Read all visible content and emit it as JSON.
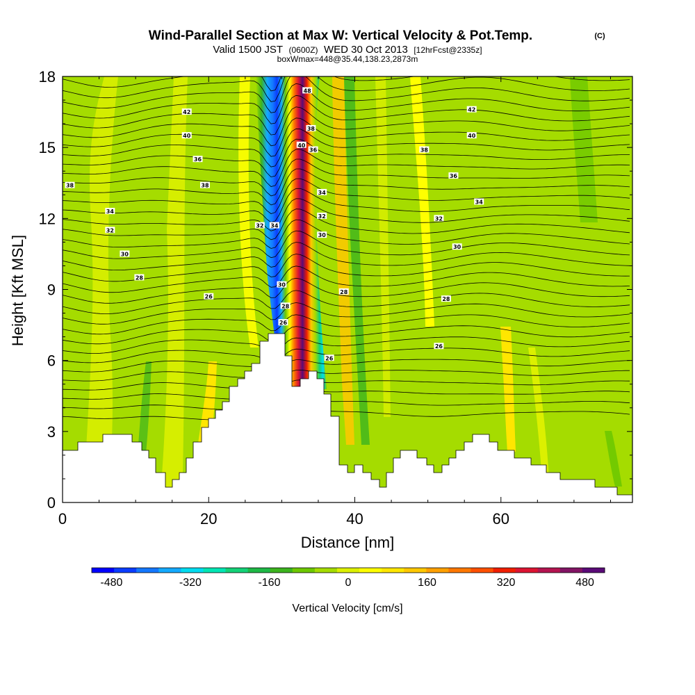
{
  "title": {
    "main": "Wind-Parallel Section at Max W: Vertical Velocity & Pot.Temp.",
    "copyright": "(C)",
    "line2_a": "Valid 1500 JST",
    "line2_b": "(0600Z)",
    "line2_c": "WED 30 Oct 2013",
    "line2_d": "[12hrFcst@2335z]",
    "line3": "boxWmax=448@35.44,138.23,2873m"
  },
  "chart_data": {
    "type": "heatmap",
    "xlabel": "Distance [nm]",
    "ylabel": "Height [Kft MSL]",
    "xlim": [
      0,
      78
    ],
    "ylim": [
      0,
      18
    ],
    "x_ticks": [
      0,
      20,
      40,
      60
    ],
    "y_ticks": [
      0,
      3,
      6,
      9,
      12,
      15,
      18
    ],
    "colorbar": {
      "label": "Vertical Velocity [cm/s]",
      "range": [
        -520,
        520
      ],
      "tick_values": [
        -480,
        -320,
        -160,
        0,
        160,
        320,
        480
      ],
      "tick_labels": [
        "-480",
        "-320",
        "-160",
        "0",
        "160",
        "320",
        "480"
      ],
      "colors": [
        "#0000ff",
        "#0a3cff",
        "#1478ff",
        "#14aaff",
        "#00dcf0",
        "#00e6b4",
        "#14d278",
        "#1eb946",
        "#3cb41e",
        "#6ec800",
        "#a5dc00",
        "#dcf000",
        "#ffff00",
        "#ffe600",
        "#ffc800",
        "#ffa000",
        "#ff7800",
        "#ff5000",
        "#f01e00",
        "#dc1432",
        "#b41450",
        "#821464",
        "#5a0a78"
      ]
    },
    "potential_temperature_contour_labels": [
      {
        "x": 17,
        "y": 16.5,
        "text": "42"
      },
      {
        "x": 17,
        "y": 15.5,
        "text": "40"
      },
      {
        "x": 18.5,
        "y": 14.5,
        "text": "36"
      },
      {
        "x": 1,
        "y": 13.4,
        "text": "38"
      },
      {
        "x": 19.5,
        "y": 13.4,
        "text": "38"
      },
      {
        "x": 6.5,
        "y": 12.3,
        "text": "34"
      },
      {
        "x": 6.5,
        "y": 11.5,
        "text": "32"
      },
      {
        "x": 8.5,
        "y": 10.5,
        "text": "30"
      },
      {
        "x": 10.5,
        "y": 9.5,
        "text": "28"
      },
      {
        "x": 20,
        "y": 8.7,
        "text": "26"
      },
      {
        "x": 27,
        "y": 11.7,
        "text": "32"
      },
      {
        "x": 29,
        "y": 11.7,
        "text": "34"
      },
      {
        "x": 30,
        "y": 9.2,
        "text": "30"
      },
      {
        "x": 30.5,
        "y": 8.3,
        "text": "28"
      },
      {
        "x": 30.2,
        "y": 7.6,
        "text": "26"
      },
      {
        "x": 33.5,
        "y": 17.4,
        "text": "48"
      },
      {
        "x": 34,
        "y": 15.8,
        "text": "38"
      },
      {
        "x": 32.7,
        "y": 15.1,
        "text": "40"
      },
      {
        "x": 34.3,
        "y": 14.9,
        "text": "36"
      },
      {
        "x": 35.5,
        "y": 13.1,
        "text": "34"
      },
      {
        "x": 35.5,
        "y": 12.1,
        "text": "32"
      },
      {
        "x": 35.5,
        "y": 11.3,
        "text": "30"
      },
      {
        "x": 38.5,
        "y": 8.9,
        "text": "28"
      },
      {
        "x": 36.5,
        "y": 6.1,
        "text": "26"
      },
      {
        "x": 56,
        "y": 16.6,
        "text": "42"
      },
      {
        "x": 56,
        "y": 15.5,
        "text": "40"
      },
      {
        "x": 49.5,
        "y": 14.9,
        "text": "38"
      },
      {
        "x": 53.5,
        "y": 13.8,
        "text": "36"
      },
      {
        "x": 57,
        "y": 12.7,
        "text": "34"
      },
      {
        "x": 51.5,
        "y": 12,
        "text": "32"
      },
      {
        "x": 54,
        "y": 10.8,
        "text": "30"
      },
      {
        "x": 52.5,
        "y": 8.6,
        "text": "28"
      },
      {
        "x": 51.5,
        "y": 6.6,
        "text": "26"
      }
    ]
  }
}
